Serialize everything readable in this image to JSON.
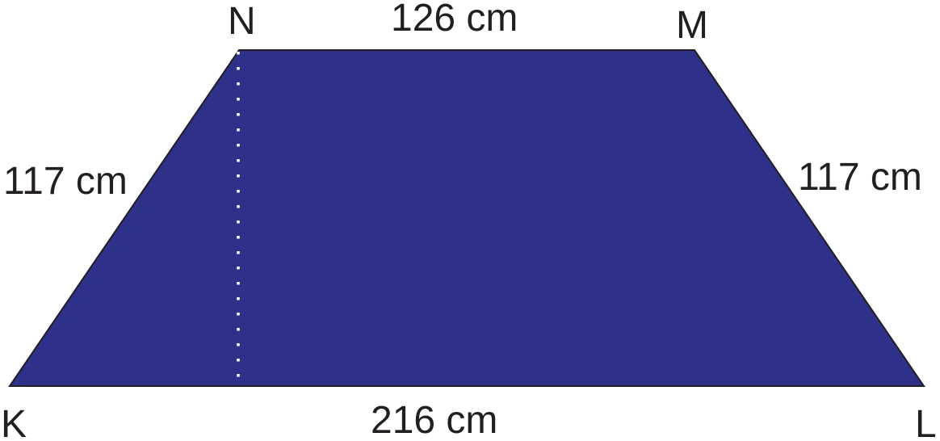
{
  "colors": {
    "fill": "#2e3189",
    "stroke": "#231f20",
    "height_line": "#ffffff",
    "text": "#231f20"
  },
  "vertices": {
    "k": "K",
    "l": "L",
    "m": "M",
    "n": "N"
  },
  "sides": {
    "top": "126 cm",
    "bottom": "216 cm",
    "left": "117 cm",
    "right": "117 cm"
  }
}
